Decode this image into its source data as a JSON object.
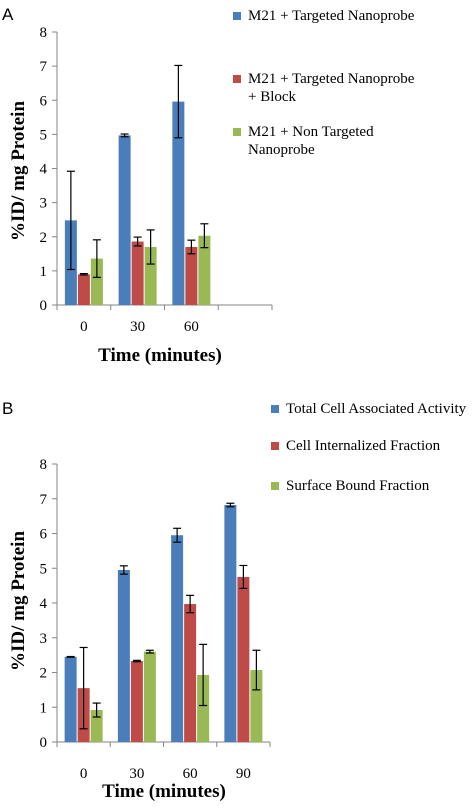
{
  "colors": {
    "series1": "#4a7ebb",
    "series2": "#be4b48",
    "series3": "#98b954",
    "axis": "#868686",
    "error_bar": "#000000"
  },
  "chart_data": [
    {
      "panel": "A",
      "type": "bar",
      "categories": [
        "0",
        "30",
        "60"
      ],
      "slots": 4,
      "ylim": [
        0,
        8
      ],
      "yticks": [
        0,
        1,
        2,
        3,
        4,
        5,
        6,
        7,
        8
      ],
      "xlabel": "Time (minutes)",
      "ylabel": "%ID/ mg Protein",
      "legend_position": "top-right",
      "grid": false,
      "series": [
        {
          "name": "M21 + Targeted Nanoprobe",
          "legend_lines": [
            "M21 + Targeted Nanoprobe"
          ],
          "values": [
            2.48,
            4.97,
            5.96
          ],
          "errors": [
            1.44,
            0.04,
            1.06
          ]
        },
        {
          "name": "M21 + Targeted Nanoprobe + Block",
          "legend_lines": [
            "M21 + Targeted Nanoprobe",
            "+ Block"
          ],
          "values": [
            0.9,
            1.86,
            1.7
          ],
          "errors": [
            0.02,
            0.13,
            0.2
          ]
        },
        {
          "name": "M21 + Non Targeted Nanoprobe",
          "legend_lines": [
            "M21 + Non Targeted",
            "Nanoprobe"
          ],
          "values": [
            1.36,
            1.7,
            2.03
          ],
          "errors": [
            0.55,
            0.5,
            0.35
          ]
        }
      ]
    },
    {
      "panel": "B",
      "type": "bar",
      "categories": [
        "0",
        "30",
        "60",
        "90"
      ],
      "slots": 4,
      "ylim": [
        0,
        8
      ],
      "yticks": [
        0,
        1,
        2,
        3,
        4,
        5,
        6,
        7,
        8
      ],
      "xlabel": "Time (minutes)",
      "ylabel": "%ID/ mg Protein",
      "legend_position": "top-right",
      "grid": false,
      "series": [
        {
          "name": "Total Cell Associated Activity",
          "legend_lines": [
            "Total Cell Associated Activity"
          ],
          "values": [
            2.45,
            4.95,
            5.95,
            6.82
          ],
          "errors": [
            0.01,
            0.12,
            0.2,
            0.05
          ]
        },
        {
          "name": "Cell Internalized Fraction",
          "legend_lines": [
            "Cell Internalized Fraction"
          ],
          "values": [
            1.55,
            2.33,
            3.97,
            4.75
          ],
          "errors": [
            1.17,
            0.02,
            0.25,
            0.33
          ]
        },
        {
          "name": "Surface Bound Fraction",
          "legend_lines": [
            "Surface Bound Fraction"
          ],
          "values": [
            0.92,
            2.6,
            1.93,
            2.07
          ],
          "errors": [
            0.2,
            0.04,
            0.88,
            0.57
          ]
        }
      ]
    }
  ]
}
